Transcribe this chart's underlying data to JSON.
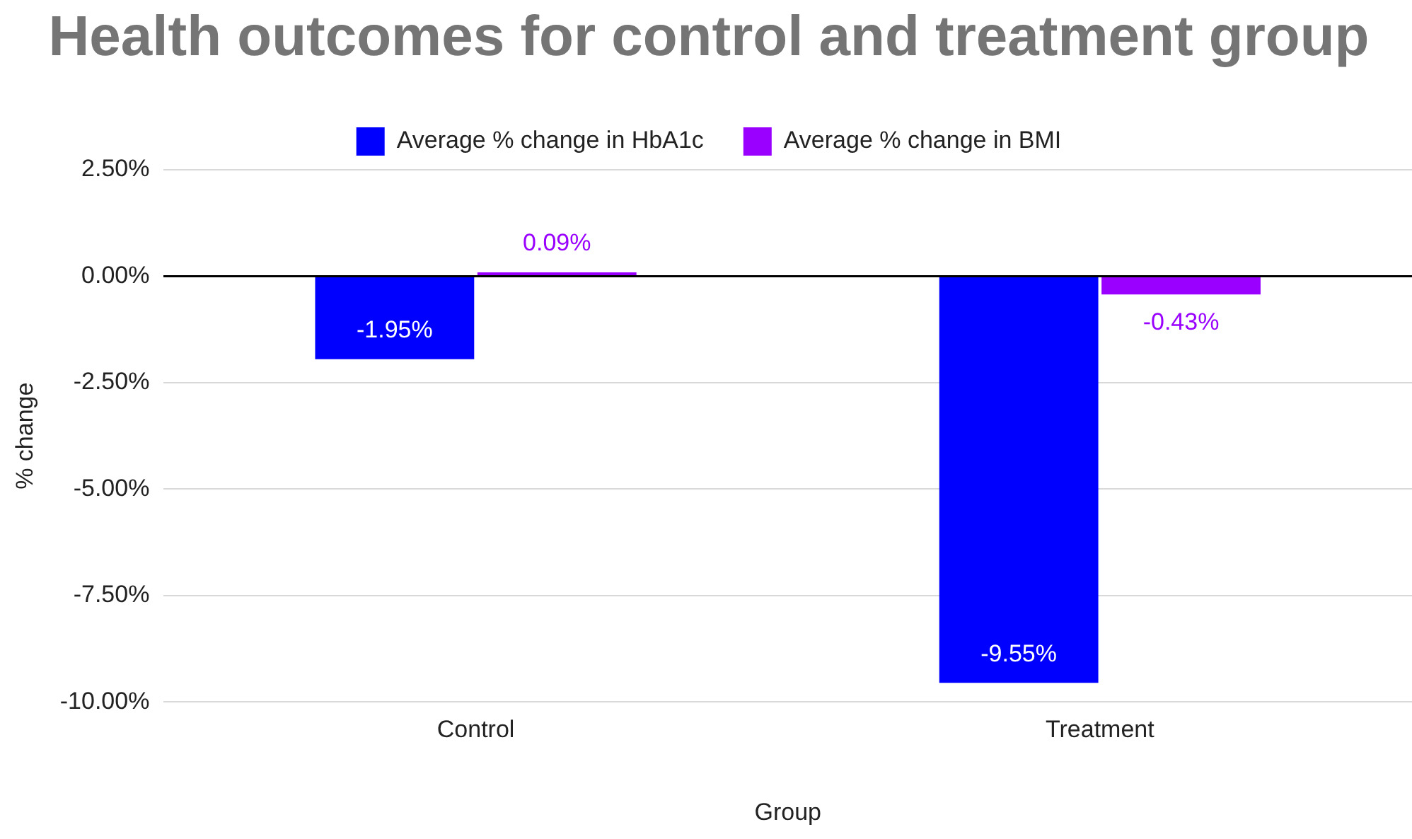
{
  "chart_data": {
    "type": "bar",
    "title": "Health outcomes for control and treatment group",
    "xlabel": "Group",
    "ylabel": "% change",
    "categories": [
      "Control",
      "Treatment"
    ],
    "series": [
      {
        "name": "Average % change in HbA1c",
        "color": "#0000ff",
        "values": [
          -1.95,
          -9.55
        ],
        "value_labels": [
          "-1.95%",
          "-9.55%"
        ]
      },
      {
        "name": "Average % change in BMI",
        "color": "#9900ff",
        "values": [
          0.09,
          -0.43
        ],
        "value_labels": [
          "0.09%",
          "-0.43%"
        ]
      }
    ],
    "ylim": [
      -10,
      2.5
    ],
    "yticks": [
      {
        "value": -10,
        "label": "-10.00%"
      },
      {
        "value": -7.5,
        "label": "-7.50%"
      },
      {
        "value": -5,
        "label": "-5.00%"
      },
      {
        "value": -2.5,
        "label": "-2.50%"
      },
      {
        "value": 0,
        "label": "0.00%"
      },
      {
        "value": 2.5,
        "label": "2.50%"
      }
    ],
    "grid": "y",
    "legend": "top"
  }
}
